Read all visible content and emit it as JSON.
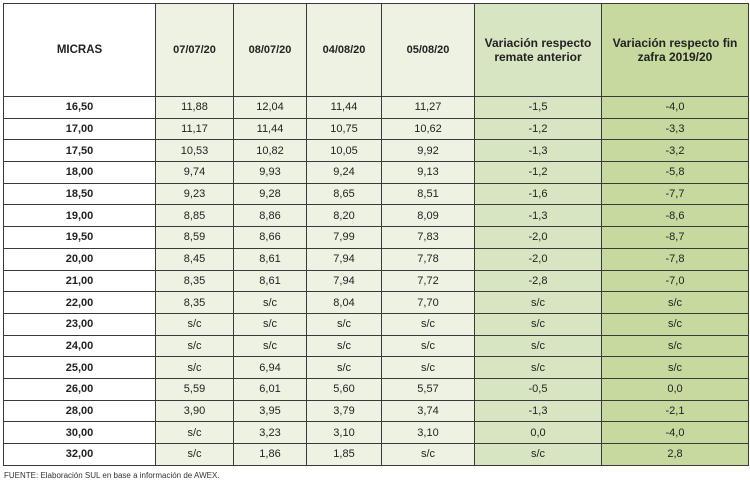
{
  "table": {
    "headers": [
      "MICRAS",
      "07/07/20",
      "08/07/20",
      "04/08/20",
      "05/08/20",
      "Variación respecto remate anterior",
      "Variación respecto fin zafra 2019/20"
    ],
    "rows": [
      [
        "16,50",
        "11,88",
        "12,04",
        "11,44",
        "11,27",
        "-1,5",
        "-4,0"
      ],
      [
        "17,00",
        "11,17",
        "11,44",
        "10,75",
        "10,62",
        "-1,2",
        "-3,3"
      ],
      [
        "17,50",
        "10,53",
        "10,82",
        "10,05",
        "9,92",
        "-1,3",
        "-3,2"
      ],
      [
        "18,00",
        "9,74",
        "9,93",
        "9,24",
        "9,13",
        "-1,2",
        "-5,8"
      ],
      [
        "18,50",
        "9,23",
        "9,28",
        "8,65",
        "8,51",
        "-1,6",
        "-7,7"
      ],
      [
        "19,00",
        "8,85",
        "8,86",
        "8,20",
        "8,09",
        "-1,3",
        "-8,6"
      ],
      [
        "19,50",
        "8,59",
        "8,66",
        "7,99",
        "7,83",
        "-2,0",
        "-8,7"
      ],
      [
        "20,00",
        "8,45",
        "8,61",
        "7,94",
        "7,78",
        "-2,0",
        "-7,8"
      ],
      [
        "21,00",
        "8,35",
        "8,61",
        "7,94",
        "7,72",
        "-2,8",
        "-7,0"
      ],
      [
        "22,00",
        "8,35",
        "s/c",
        "8,04",
        "7,70",
        "s/c",
        "s/c"
      ],
      [
        "23,00",
        "s/c",
        "s/c",
        "s/c",
        "s/c",
        "s/c",
        "s/c"
      ],
      [
        "24,00",
        "s/c",
        "s/c",
        "s/c",
        "s/c",
        "s/c",
        "s/c"
      ],
      [
        "25,00",
        "s/c",
        "6,94",
        "s/c",
        "s/c",
        "s/c",
        "s/c"
      ],
      [
        "26,00",
        "5,59",
        "6,01",
        "5,60",
        "5,57",
        "-0,5",
        "0,0"
      ],
      [
        "28,00",
        "3,90",
        "3,95",
        "3,79",
        "3,74",
        "-1,3",
        "-2,1"
      ],
      [
        "30,00",
        "s/c",
        "3,23",
        "3,10",
        "3,10",
        "0,0",
        "-4,0"
      ],
      [
        "32,00",
        "s/c",
        "1,86",
        "1,85",
        "s/c",
        "s/c",
        "2,8"
      ]
    ]
  },
  "footer": "FUENTE: Elaboración SUL en base a información de AWEX.",
  "colors": {
    "data_cells": "#eef2e3",
    "variation_prev": "#d8e5c2",
    "variation_season": "#c6da9f"
  }
}
